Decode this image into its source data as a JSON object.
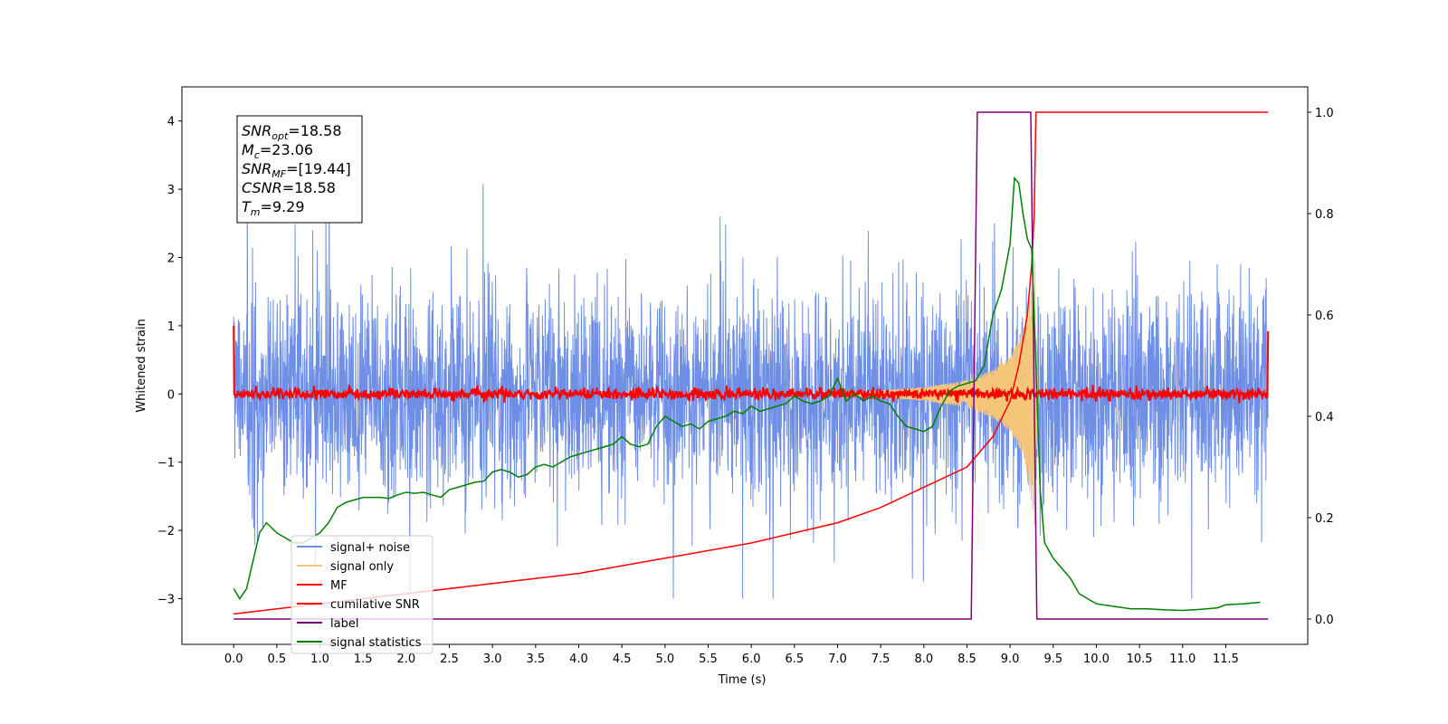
{
  "chart_data": {
    "type": "line",
    "xlabel": "Time (s)",
    "ylabel": "Whitened strain",
    "xlim": [
      -0.6,
      12.45
    ],
    "ylim_left": [
      -3.67,
      4.5
    ],
    "ylim_right": [
      -0.05,
      1.05
    ],
    "x_ticks": [
      "0.0",
      "0.5",
      "1.0",
      "1.5",
      "2.0",
      "2.5",
      "3.0",
      "3.5",
      "4.0",
      "4.5",
      "5.0",
      "5.5",
      "6.0",
      "6.5",
      "7.0",
      "7.5",
      "8.0",
      "8.5",
      "9.0",
      "9.5",
      "10.0",
      "10.5",
      "11.0",
      "11.5"
    ],
    "y_ticks_left": [
      "−3",
      "−2",
      "−1",
      "0",
      "1",
      "2",
      "3",
      "4"
    ],
    "y_ticks_right": [
      "0.0",
      "0.2",
      "0.4",
      "0.6",
      "0.8",
      "1.0"
    ],
    "legend_position": "lower-left",
    "info_box": {
      "lines": [
        {
          "main": "SNR",
          "sub": "opt",
          "rest": "=18.58"
        },
        {
          "main": "M",
          "sub": "c",
          "rest": "=23.06"
        },
        {
          "main": "SNR",
          "sub": "MF",
          "rest": "=[19.44]"
        },
        {
          "main": "CSNR",
          "sub": "",
          "rest": "=18.58"
        },
        {
          "main": "T",
          "sub": "m",
          "rest": "=9.29"
        }
      ]
    },
    "series": [
      {
        "name": "signal+ noise",
        "color": "#6f8fe6",
        "axis": "left",
        "kind": "noise",
        "note_range": [
          -3.0,
          3.7
        ],
        "x_range": [
          0.0,
          11.99
        ]
      },
      {
        "name": "signal only",
        "color": "#f5c67a",
        "axis": "left",
        "kind": "chirp",
        "envelope": {
          "x": [
            7.0,
            7.5,
            8.0,
            8.5,
            8.8,
            9.0,
            9.15,
            9.25,
            9.29,
            9.32
          ],
          "amp": [
            0.02,
            0.05,
            0.1,
            0.2,
            0.35,
            0.55,
            0.9,
            1.6,
            2.0,
            0.0
          ]
        }
      },
      {
        "name": "MF",
        "color": "#ff0000",
        "axis": "left",
        "kind": "flat-noise",
        "baseline": 0.0,
        "spread": 0.08,
        "edge_values": [
          1.0,
          0.92
        ]
      },
      {
        "name": "cumilative SNR",
        "color": "#ff0000",
        "axis": "right",
        "x": [
          0.0,
          0.5,
          1.0,
          2.0,
          3.0,
          4.0,
          5.0,
          6.0,
          7.0,
          7.5,
          8.0,
          8.5,
          8.8,
          9.0,
          9.1,
          9.2,
          9.25,
          9.28,
          9.3,
          9.35,
          11.99
        ],
        "y": [
          0.01,
          0.02,
          0.03,
          0.05,
          0.07,
          0.09,
          0.12,
          0.15,
          0.19,
          0.22,
          0.26,
          0.3,
          0.36,
          0.43,
          0.5,
          0.6,
          0.7,
          0.8,
          1.0,
          1.0,
          1.0
        ]
      },
      {
        "name": "label",
        "color": "#800080",
        "axis": "right",
        "x": [
          0.0,
          8.55,
          8.62,
          9.24,
          9.31,
          11.99
        ],
        "y": [
          0.0,
          0.0,
          1.0,
          1.0,
          0.0,
          0.0
        ]
      },
      {
        "name": "signal statistics",
        "color": "#008000",
        "axis": "right",
        "x": [
          0.0,
          0.07,
          0.15,
          0.3,
          0.38,
          0.5,
          0.6,
          0.7,
          0.8,
          0.9,
          1.0,
          1.1,
          1.2,
          1.3,
          1.4,
          1.5,
          1.6,
          1.7,
          1.8,
          1.9,
          2.0,
          2.1,
          2.2,
          2.3,
          2.4,
          2.5,
          2.6,
          2.7,
          2.8,
          2.9,
          3.0,
          3.1,
          3.2,
          3.3,
          3.4,
          3.5,
          3.6,
          3.7,
          3.8,
          3.9,
          4.0,
          4.1,
          4.2,
          4.3,
          4.4,
          4.5,
          4.6,
          4.7,
          4.8,
          4.9,
          5.0,
          5.1,
          5.2,
          5.3,
          5.4,
          5.5,
          5.6,
          5.7,
          5.8,
          5.9,
          6.0,
          6.1,
          6.2,
          6.3,
          6.4,
          6.5,
          6.6,
          6.7,
          6.8,
          6.9,
          7.0,
          7.1,
          7.2,
          7.3,
          7.4,
          7.5,
          7.6,
          7.7,
          7.8,
          7.9,
          8.0,
          8.1,
          8.2,
          8.3,
          8.4,
          8.5,
          8.6,
          8.7,
          8.8,
          8.9,
          9.0,
          9.05,
          9.1,
          9.15,
          9.2,
          9.25,
          9.3,
          9.35,
          9.4,
          9.5,
          9.6,
          9.7,
          9.8,
          9.9,
          10.0,
          10.2,
          10.4,
          10.6,
          10.8,
          11.0,
          11.2,
          11.4,
          11.5,
          11.7,
          11.9
        ],
        "y": [
          0.06,
          0.04,
          0.06,
          0.17,
          0.19,
          0.17,
          0.16,
          0.15,
          0.15,
          0.16,
          0.17,
          0.19,
          0.22,
          0.23,
          0.235,
          0.24,
          0.24,
          0.24,
          0.238,
          0.245,
          0.25,
          0.248,
          0.25,
          0.245,
          0.24,
          0.255,
          0.26,
          0.265,
          0.27,
          0.272,
          0.29,
          0.295,
          0.29,
          0.28,
          0.285,
          0.3,
          0.305,
          0.3,
          0.31,
          0.32,
          0.325,
          0.33,
          0.335,
          0.34,
          0.345,
          0.36,
          0.345,
          0.34,
          0.345,
          0.38,
          0.4,
          0.39,
          0.38,
          0.385,
          0.375,
          0.39,
          0.395,
          0.4,
          0.41,
          0.405,
          0.42,
          0.41,
          0.415,
          0.42,
          0.425,
          0.44,
          0.43,
          0.425,
          0.43,
          0.44,
          0.475,
          0.43,
          0.445,
          0.43,
          0.44,
          0.43,
          0.425,
          0.4,
          0.38,
          0.375,
          0.37,
          0.38,
          0.42,
          0.45,
          0.46,
          0.465,
          0.47,
          0.5,
          0.6,
          0.65,
          0.74,
          0.87,
          0.86,
          0.8,
          0.75,
          0.73,
          0.5,
          0.25,
          0.15,
          0.12,
          0.1,
          0.08,
          0.05,
          0.04,
          0.03,
          0.025,
          0.02,
          0.02,
          0.018,
          0.017,
          0.019,
          0.022,
          0.028,
          0.03,
          0.033
        ]
      }
    ]
  }
}
